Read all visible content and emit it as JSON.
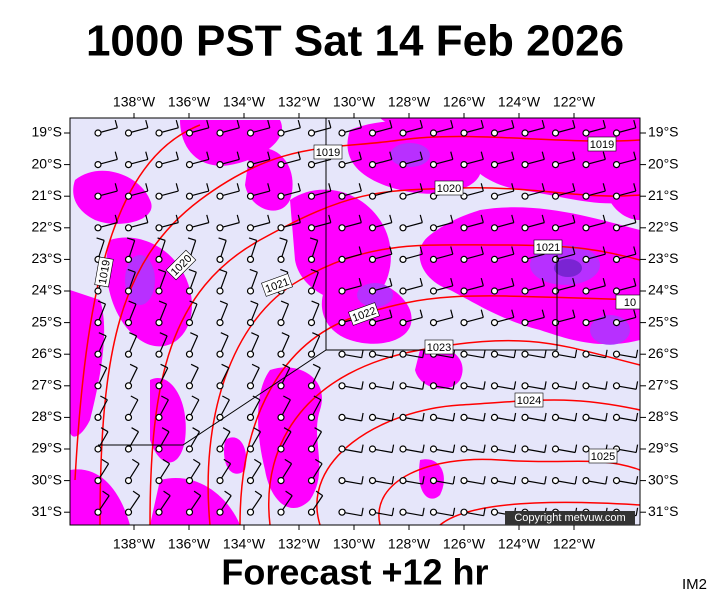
{
  "header": {
    "title": "1000 PST Sat 14 Feb 2026"
  },
  "map": {
    "lon_labels": [
      "138°W",
      "136°W",
      "134°W",
      "132°W",
      "130°W",
      "128°W",
      "126°W",
      "124°W",
      "122°W"
    ],
    "lat_labels": [
      "19°S",
      "20°S",
      "21°S",
      "22°S",
      "23°S",
      "24°S",
      "25°S",
      "26°S",
      "27°S",
      "28°S",
      "29°S",
      "30°S",
      "31°S"
    ],
    "isobar_labels": [
      "1019",
      "1019",
      "1019",
      "1020",
      "1020",
      "1021",
      "1021",
      "1022",
      "1023",
      "1024",
      "1025",
      "10"
    ],
    "copyright": "Copyright metvuw.com"
  },
  "footer": {
    "forecast": "Forecast +12 hr",
    "tag": "IM2"
  }
}
